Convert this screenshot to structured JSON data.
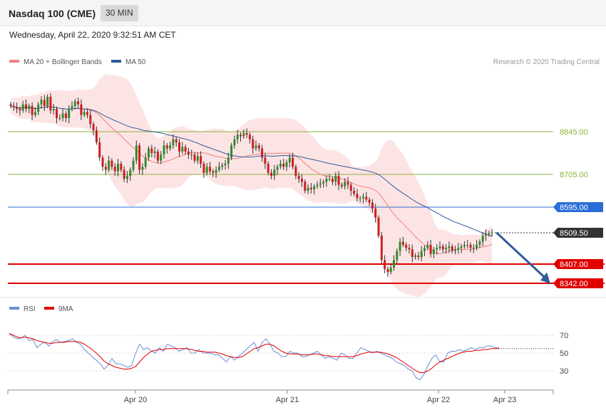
{
  "header": {
    "title": "Nasdaq 100 (CME)",
    "timeframe": "30 MIN"
  },
  "date": "Wednesday, April 22, 2020 9:32:51 AM CET",
  "credit": "Research © 2020 Trading Central",
  "colors": {
    "bollinger": "#f08080",
    "ma50": "#2f5b9a",
    "green": "#8ab53a",
    "blue": "#2a6dd6",
    "red": "#e00000",
    "dark": "#333333",
    "rsi": "#6a8fd8",
    "ma9": "#e00000"
  },
  "chart_data": [
    {
      "type": "candlestick",
      "title": "",
      "legend": [
        {
          "name": "MA 20 + Bollinger Bands",
          "color": "#f08080"
        },
        {
          "name": "MA 50",
          "color": "#2f5b9a"
        }
      ],
      "legend_position": "top-left",
      "ylim": [
        8320,
        9100
      ],
      "x_ticks": [
        {
          "label": "Apr 20",
          "i": 40
        },
        {
          "label": "Apr 21",
          "i": 88
        },
        {
          "label": "Apr 22",
          "i": 136
        },
        {
          "label": "Apr 23",
          "i": 157
        }
      ],
      "levels": [
        {
          "value": "8845.00",
          "type": "resistance",
          "color": "#8ab53a",
          "width": 1
        },
        {
          "value": "8705.00",
          "type": "resistance",
          "color": "#8ab53a",
          "width": 1
        },
        {
          "value": "8595.00",
          "type": "pivot",
          "color": "#2a6dd6",
          "width": 1
        },
        {
          "value": "8509.50",
          "type": "last",
          "color": "#333333",
          "width": 1
        },
        {
          "value": "8407.00",
          "type": "support",
          "color": "#e00000",
          "width": 2
        },
        {
          "value": "8342.00",
          "type": "support",
          "color": "#e00000",
          "width": 2
        }
      ],
      "forecast_arrow": {
        "from_i": 158,
        "from": 8510,
        "to_i": 172,
        "to": 8345,
        "color": "#2f5b9a"
      },
      "ohlc_close": [
        8930,
        8925,
        8920,
        8915,
        8935,
        8920,
        8930,
        8900,
        8910,
        8935,
        8950,
        8930,
        8960,
        8915,
        8920,
        8890,
        8890,
        8905,
        8890,
        8920,
        8930,
        8945,
        8935,
        8900,
        8910,
        8900,
        8870,
        8850,
        8810,
        8760,
        8730,
        8720,
        8750,
        8730,
        8715,
        8740,
        8720,
        8690,
        8700,
        8720,
        8750,
        8800,
        8720,
        8730,
        8760,
        8790,
        8775,
        8780,
        8750,
        8770,
        8800,
        8790,
        8800,
        8820,
        8810,
        8780,
        8795,
        8780,
        8770,
        8770,
        8750,
        8765,
        8740,
        8710,
        8730,
        8715,
        8710,
        8720,
        8730,
        8735,
        8740,
        8760,
        8800,
        8820,
        8835,
        8830,
        8840,
        8835,
        8820,
        8790,
        8800,
        8790,
        8760,
        8740,
        8710,
        8700,
        8720,
        8730,
        8740,
        8730,
        8745,
        8760,
        8730,
        8700,
        8690,
        8680,
        8650,
        8660,
        8655,
        8665,
        8670,
        8675,
        8680,
        8690,
        8690,
        8680,
        8700,
        8670,
        8665,
        8680,
        8670,
        8650,
        8640,
        8625,
        8625,
        8630,
        8620,
        8610,
        8590,
        8560,
        8500,
        8420,
        8390,
        8380,
        8395,
        8420,
        8450,
        8480,
        8470,
        8460,
        8455,
        8430,
        8435,
        8430,
        8450,
        8460,
        8470,
        8440,
        8455,
        8460,
        8465,
        8455,
        8460,
        8465,
        8450,
        8455,
        8460,
        8465,
        8470,
        8470,
        8460,
        8460,
        8470,
        8480,
        8500,
        8505,
        8508,
        8510
      ],
      "band": {
        "start_i": 0,
        "mid_stride": 4
      }
    },
    {
      "type": "line",
      "title": "",
      "legend": [
        {
          "name": "RSI",
          "color": "#6a8fd8"
        },
        {
          "name": "9MA",
          "color": "#e00000"
        }
      ],
      "ylim": [
        10,
        90
      ],
      "y_ticks": [
        70,
        50,
        30
      ],
      "series": [
        {
          "name": "RSI",
          "values": [
            72,
            68,
            66,
            67,
            70,
            64,
            65,
            56,
            60,
            62,
            58,
            63,
            65,
            62,
            63,
            64,
            66,
            62,
            60,
            54,
            50,
            46,
            42,
            38,
            32,
            36,
            44,
            38,
            38,
            36,
            34,
            36,
            50,
            60,
            54,
            56,
            52,
            50,
            56,
            52,
            60,
            58,
            56,
            52,
            54,
            56,
            50,
            50,
            54,
            50,
            50,
            50,
            48,
            48,
            44,
            40,
            46,
            42,
            46,
            50,
            54,
            58,
            62,
            52,
            62,
            66,
            60,
            52,
            50,
            46,
            46,
            52,
            50,
            50,
            46,
            46,
            48,
            50,
            52,
            48,
            44,
            46,
            44,
            42,
            50,
            48,
            44,
            44,
            50,
            56,
            54,
            52,
            50,
            52,
            50,
            48,
            46,
            44,
            40,
            38,
            36,
            32,
            30,
            22,
            20,
            26,
            36,
            44,
            48,
            40,
            40,
            50,
            52,
            52,
            54,
            52,
            54,
            56,
            54,
            56,
            56,
            58,
            58,
            56,
            56
          ]
        },
        {
          "name": "9MA",
          "values": [
            72,
            70,
            68,
            67,
            68,
            67,
            66,
            64,
            63,
            62,
            61,
            61,
            62,
            62,
            62,
            63,
            63,
            63,
            62,
            60,
            57,
            54,
            50,
            46,
            41,
            38,
            36,
            34,
            33,
            32,
            32,
            33,
            35,
            40,
            45,
            49,
            52,
            53,
            54,
            54,
            55,
            55,
            55,
            55,
            55,
            55,
            54,
            53,
            52,
            52,
            51,
            51,
            51,
            50,
            49,
            47,
            46,
            45,
            45,
            46,
            49,
            52,
            55,
            56,
            58,
            60,
            60,
            58,
            55,
            52,
            50,
            49,
            49,
            49,
            48,
            48,
            48,
            49,
            49,
            48,
            47,
            47,
            46,
            46,
            46,
            46,
            46,
            46,
            47,
            49,
            50,
            51,
            51,
            51,
            51,
            50,
            49,
            47,
            45,
            42,
            39,
            36,
            33,
            30,
            28,
            28,
            30,
            33,
            37,
            40,
            42,
            44,
            46,
            48,
            50,
            51,
            52,
            52,
            53,
            53,
            54,
            54,
            55,
            55,
            55
          ]
        }
      ]
    }
  ]
}
